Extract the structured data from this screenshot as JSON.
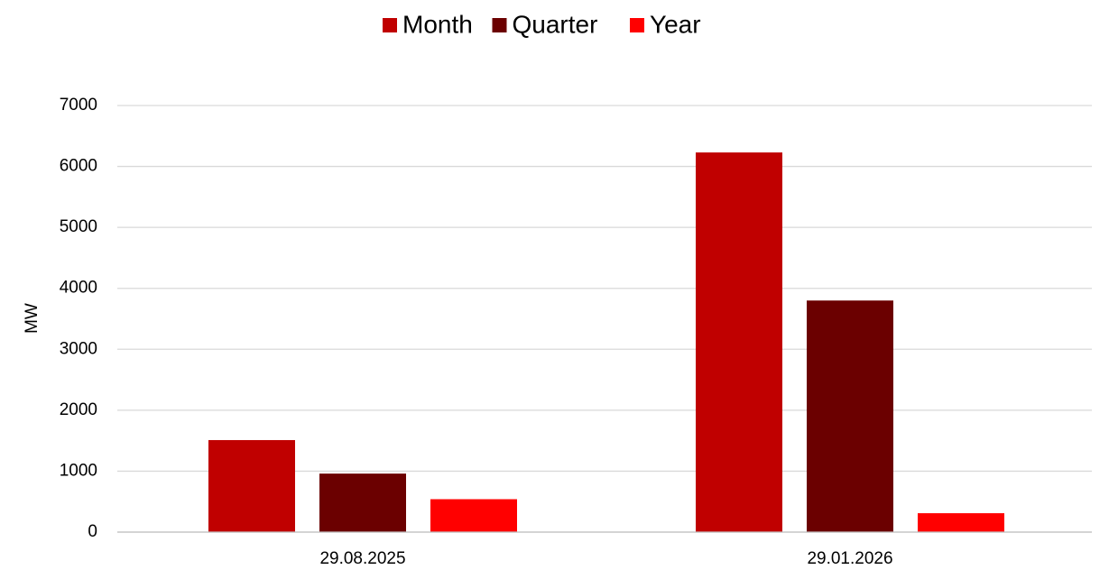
{
  "chart_data": {
    "type": "bar",
    "categories": [
      "29.08.2025",
      "29.01.2026"
    ],
    "series": [
      {
        "name": "Month",
        "color": "#c00000",
        "values": [
          1510,
          6230
        ]
      },
      {
        "name": "Quarter",
        "color": "#6b0000",
        "values": [
          960,
          3800
        ]
      },
      {
        "name": "Year",
        "color": "#ff0000",
        "values": [
          540,
          310
        ]
      }
    ],
    "y_label": "MW",
    "ylim": [
      0,
      7000
    ],
    "yticks": [
      0,
      1000,
      2000,
      3000,
      4000,
      5000,
      6000,
      7000
    ],
    "grid": true,
    "legend": "top"
  }
}
